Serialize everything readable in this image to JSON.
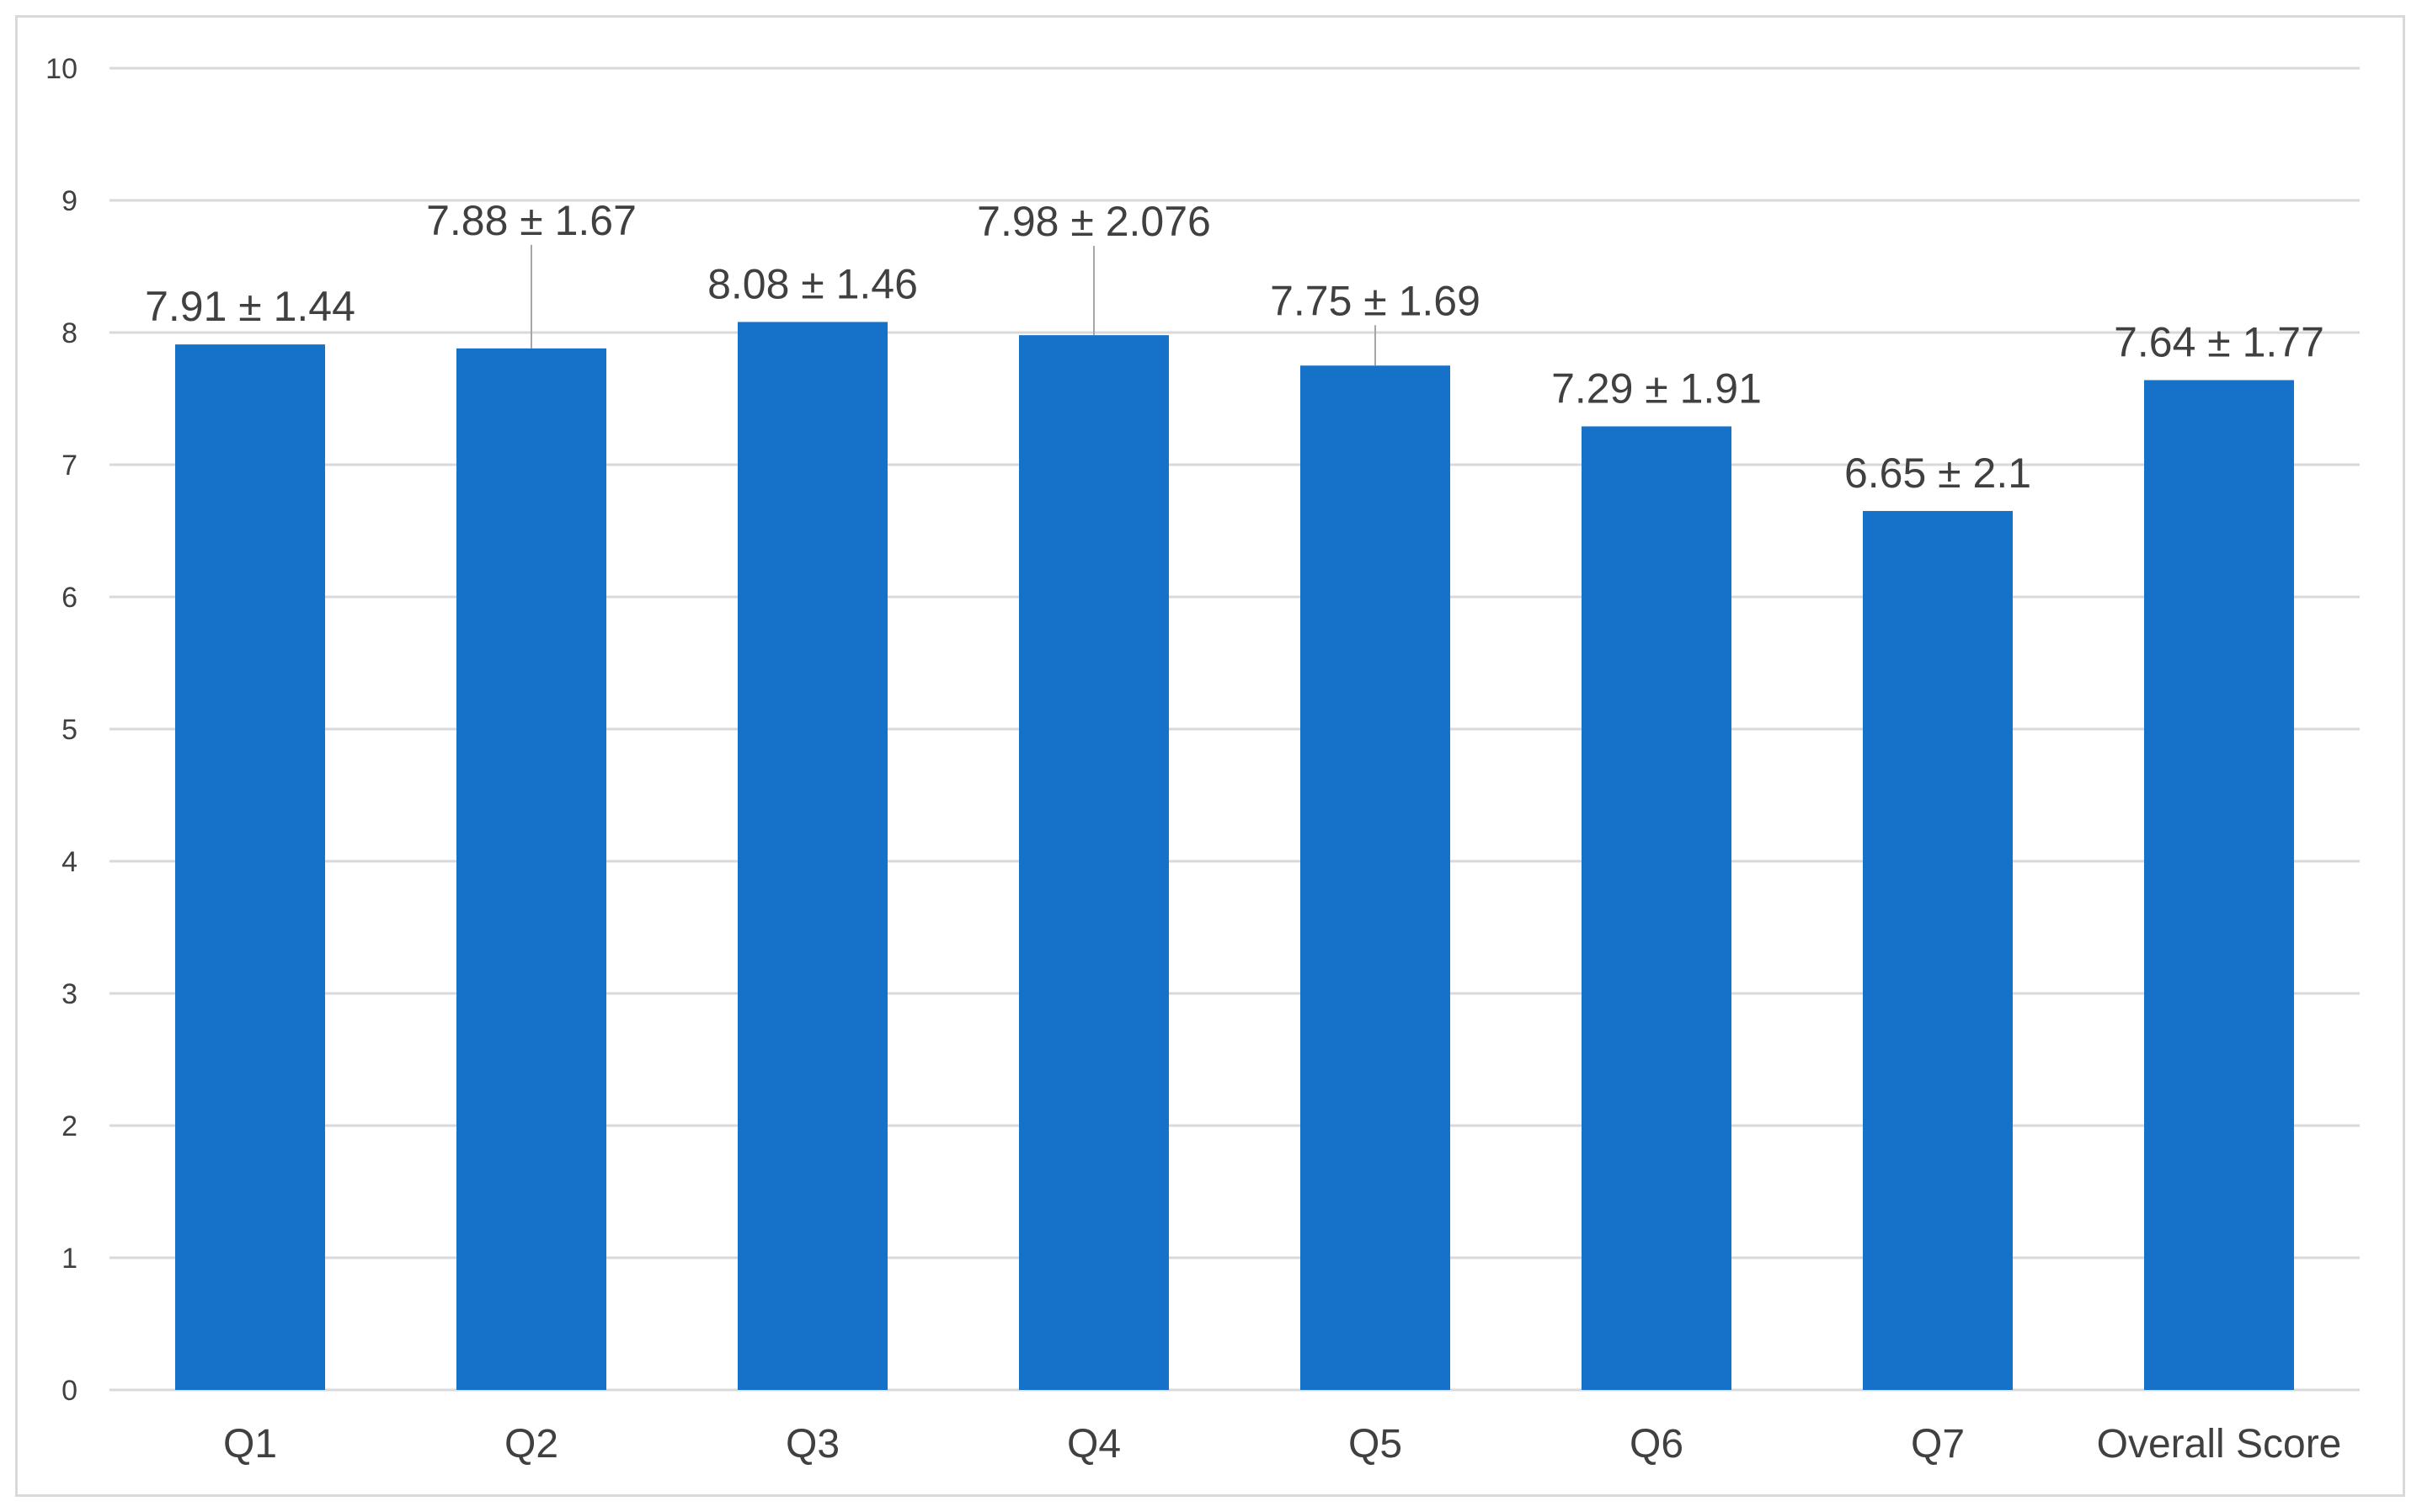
{
  "chart_data": {
    "type": "bar",
    "title": "",
    "xlabel": "",
    "ylabel": "",
    "ylim": [
      0,
      10
    ],
    "yticks": [
      0,
      1,
      2,
      3,
      4,
      5,
      6,
      7,
      8,
      9,
      10
    ],
    "grid": true,
    "legend": "none",
    "categories": [
      "Q1",
      "Q2",
      "Q3",
      "Q4",
      "Q5",
      "Q6",
      "Q7",
      "Overall Score"
    ],
    "values": [
      7.91,
      7.88,
      8.08,
      7.98,
      7.75,
      7.29,
      6.65,
      7.64
    ],
    "data_labels": [
      "7.91 ± 1.44",
      "7.88 ± 1.67",
      "8.08 ± 1.46",
      "7.98 ± 2.076",
      "7.75 ± 1.69",
      "7.29 ± 1.91",
      "6.65 ± 2.1",
      "7.64 ± 1.77"
    ],
    "colors": {
      "bar": "#1671C9",
      "grid": "#d9d9d9",
      "text": "#404040",
      "leader_line": "#a6a6a6"
    }
  }
}
